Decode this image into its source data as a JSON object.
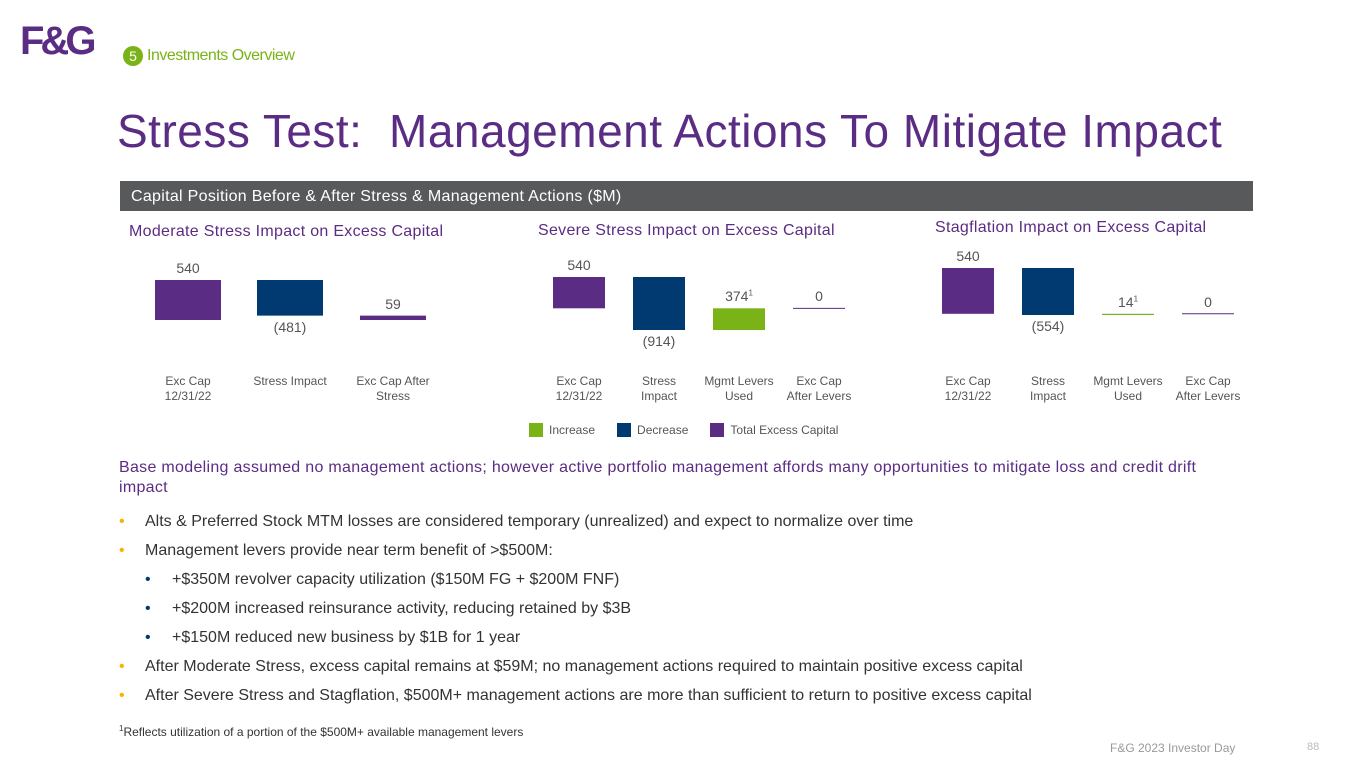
{
  "header": {
    "logo": "F&G",
    "section_number": "5",
    "section": "Investments Overview",
    "title": "Stress Test:  Management Actions To Mitigate Impact"
  },
  "banner": "Capital Position Before & After Stress & Management Actions ($M)",
  "chart_data": [
    {
      "type": "waterfall",
      "title": "Moderate Stress Impact on Excess Capital",
      "categories": [
        "Exc Cap\n12/31/22",
        "Stress Impact",
        "Exc Cap After\nStress"
      ],
      "values": [
        540,
        -481,
        59
      ],
      "value_labels": [
        "540",
        "(481)",
        "59"
      ],
      "colors": [
        "#5b2c83",
        "#003a70",
        "#5b2c83"
      ]
    },
    {
      "type": "waterfall",
      "title": "Severe Stress Impact on Excess Capital",
      "categories": [
        "Exc Cap\n12/31/22",
        "Stress\nImpact",
        "Mgmt Levers\nUsed",
        "Exc Cap\nAfter Levers"
      ],
      "values": [
        540,
        -914,
        374,
        0
      ],
      "value_labels": [
        "540",
        "(914)",
        "374",
        "0"
      ],
      "value_notes": [
        null,
        null,
        "1",
        null
      ],
      "colors": [
        "#5b2c83",
        "#003a70",
        "#7ab317",
        "#5b2c83"
      ]
    },
    {
      "type": "waterfall",
      "title": "Stagflation Impact on Excess Capital",
      "categories": [
        "Exc Cap\n12/31/22",
        "Stress\nImpact",
        "Mgmt Levers\nUsed",
        "Exc Cap\nAfter Levers"
      ],
      "values": [
        540,
        -554,
        14,
        0
      ],
      "value_labels": [
        "540",
        "(554)",
        "14",
        "0"
      ],
      "value_notes": [
        null,
        null,
        "1",
        null
      ],
      "colors": [
        "#5b2c83",
        "#003a70",
        "#7ab317",
        "#5b2c83"
      ]
    }
  ],
  "legend": [
    {
      "name": "Increase",
      "color": "#7ab317"
    },
    {
      "name": "Decrease",
      "color": "#003a70"
    },
    {
      "name": "Total Excess Capital",
      "color": "#5b2c83"
    }
  ],
  "summary": "Base modeling assumed no management actions; however active portfolio management affords many opportunities to mitigate loss and credit drift impact",
  "bullets": [
    {
      "text": "Alts & Preferred Stock MTM losses are considered temporary (unrealized) and expect to normalize over time"
    },
    {
      "text": "Management levers provide near term benefit of >$500M:",
      "sub": [
        "+$350M revolver capacity utilization ($150M FG + $200M FNF)",
        "+$200M increased reinsurance activity, reducing retained by $3B",
        "+$150M reduced new business by $1B for 1 year"
      ]
    },
    {
      "text": "After Moderate Stress, excess capital remains at $59M; no management actions required to maintain positive excess capital"
    },
    {
      "text": "After Severe Stress and Stagflation, $500M+ management actions are more than sufficient to return to positive excess capital"
    }
  ],
  "footnote": {
    "mark": "1",
    "text": "Reflects utilization of a portion of the $500M+ available management levers"
  },
  "footer": {
    "event": "F&G 2023 Investor Day",
    "page": "88"
  }
}
